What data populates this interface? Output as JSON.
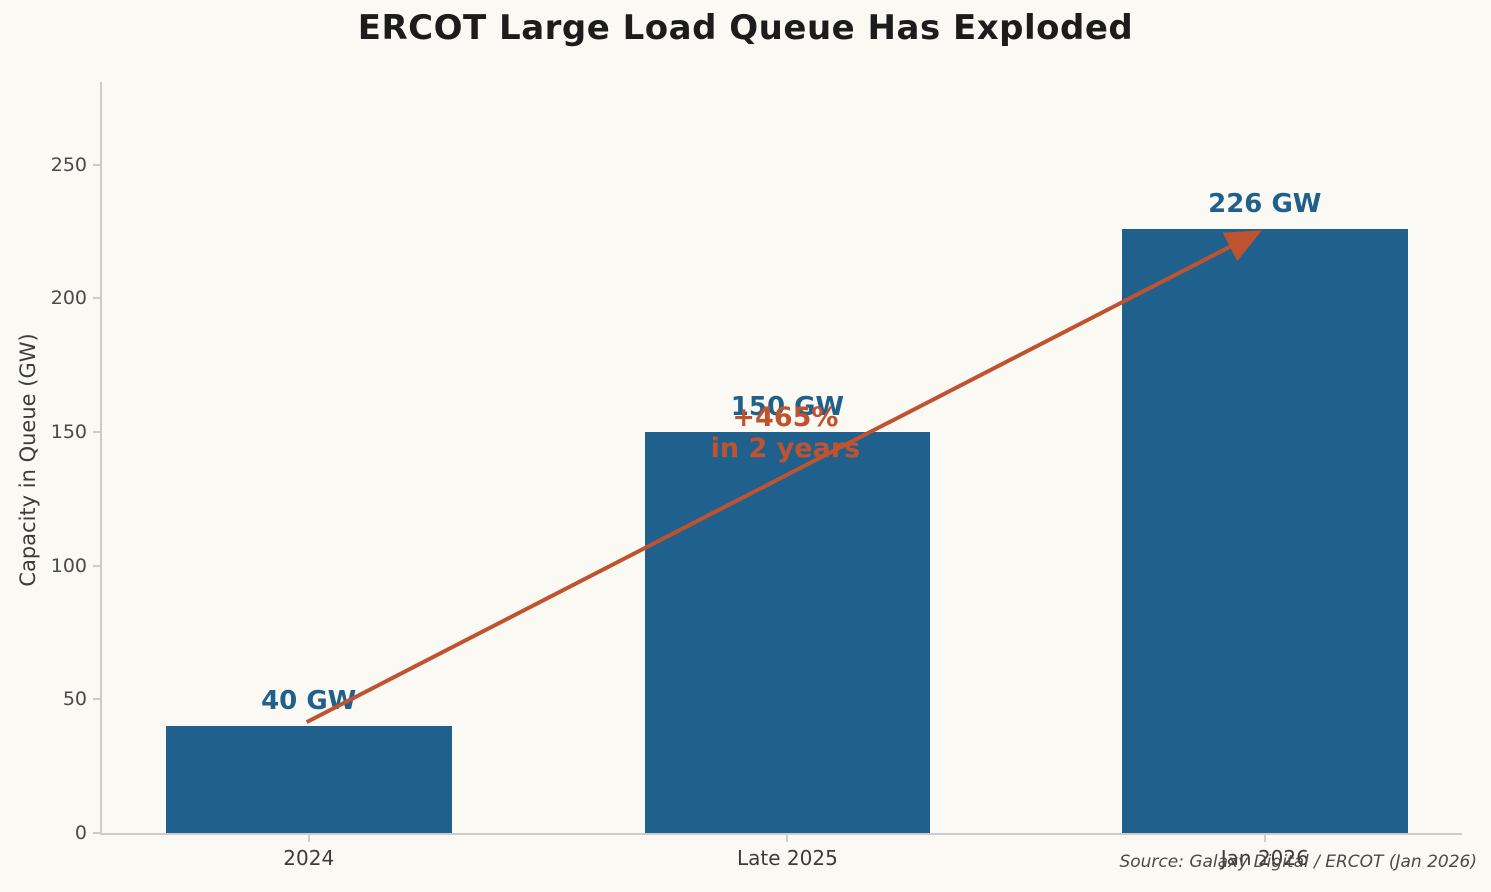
{
  "title": "ERCOT Large Load Queue Has Exploded",
  "source_note": "Source: Galaxy Digital / ERCOT (Jan 2026)",
  "chart_data": {
    "type": "bar",
    "title": "ERCOT Large Load Queue Has Exploded",
    "categories": [
      "2024",
      "Late 2025",
      "Jan 2026"
    ],
    "values": [
      40,
      150,
      226
    ],
    "bar_labels": [
      "40 GW",
      "150 GW",
      "226 GW"
    ],
    "xlabel": "",
    "ylabel": "Capacity in Queue (GW)",
    "ylim": [
      0,
      281
    ],
    "yticks": [
      0,
      50,
      100,
      150,
      200,
      250
    ],
    "grid": false,
    "legend": false,
    "annotation": {
      "line1": "+465%",
      "line2": "in 2 years",
      "anchor_category": "Late 2025"
    },
    "arrow": {
      "from": {
        "category": "2024",
        "value": 40
      },
      "to": {
        "category": "Jan 2026",
        "value": 226
      }
    },
    "colors": {
      "bar": "#1f618c",
      "value_label": "#1f618c",
      "accent": "#c0532f",
      "background": "#faf9f3",
      "axis": "#cccccc",
      "tick_text": "#4a4a4a",
      "title_text": "#1c1c1c"
    }
  }
}
